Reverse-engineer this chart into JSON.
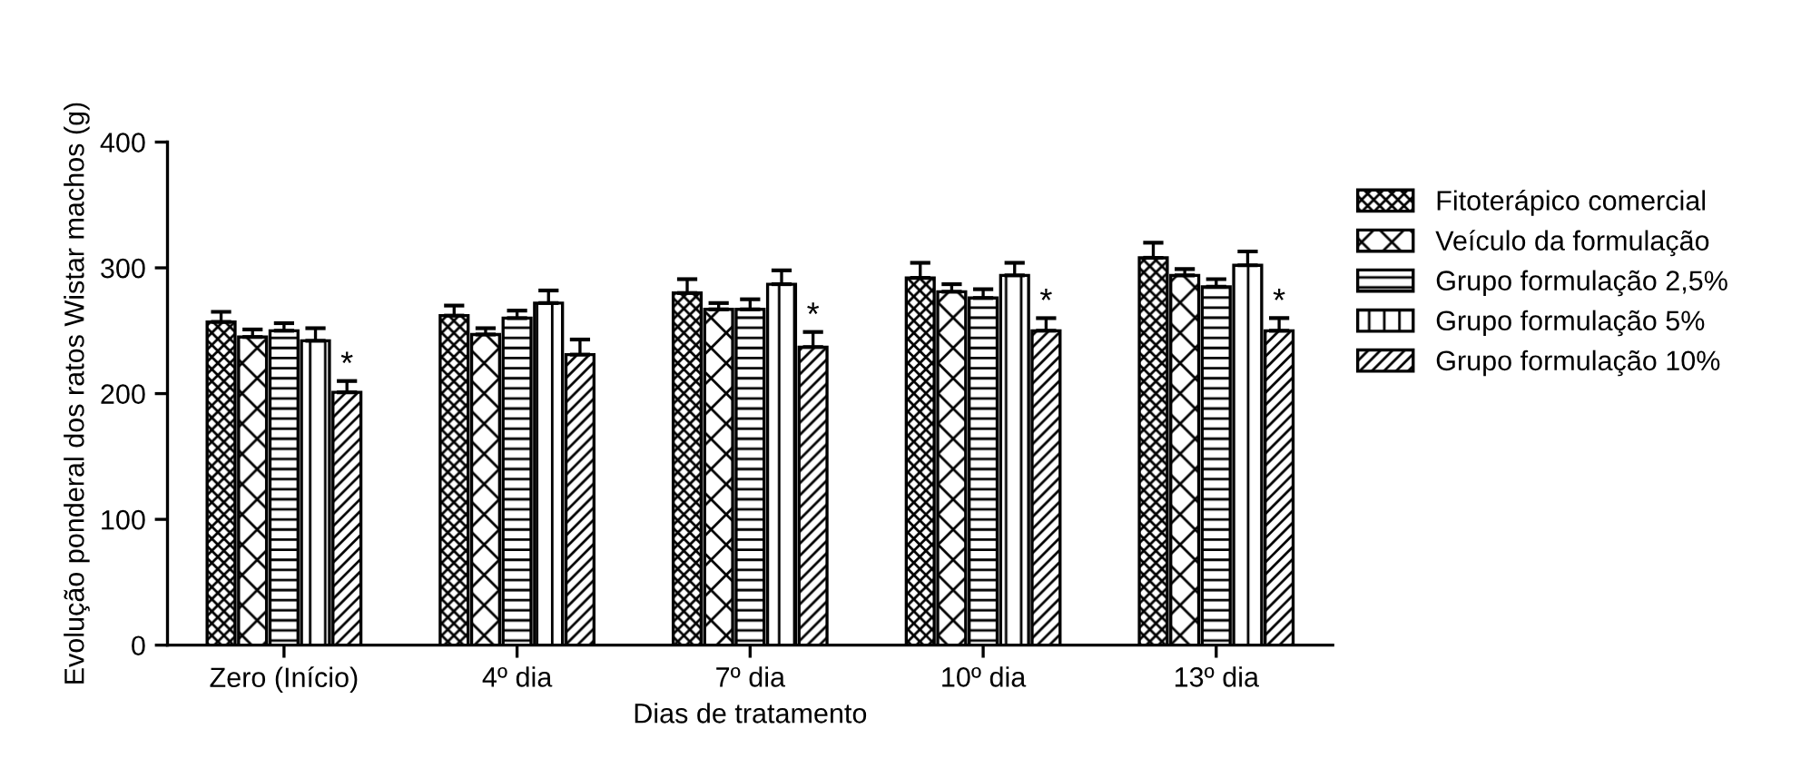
{
  "chart_data": {
    "type": "bar",
    "xlabel": "Dias de tratamento",
    "ylabel": "Evolução ponderal dos ratos Wistar machos (g)",
    "categories": [
      "Zero (Início)",
      "4º dia",
      "7º dia",
      "10º dia",
      "13º dia"
    ],
    "series": [
      {
        "name": "Fitoterápico comercial",
        "color": "#000000",
        "values": [
          257,
          262,
          280,
          292,
          308
        ],
        "errors": [
          [
            257,
            265
          ],
          [
            262,
            270
          ],
          [
            280,
            291
          ],
          [
            292,
            304
          ],
          [
            308,
            320
          ]
        ]
      },
      {
        "name": "Veículo da formulação",
        "color": "#000000",
        "values": [
          245,
          247,
          267,
          281,
          294
        ],
        "errors": [
          [
            245,
            251
          ],
          [
            247,
            252
          ],
          [
            267,
            272
          ],
          [
            281,
            287
          ],
          [
            294,
            299
          ]
        ]
      },
      {
        "name": "Grupo formulação 2,5%",
        "color": "#000000",
        "values": [
          250,
          260,
          267,
          276,
          285
        ],
        "errors": [
          [
            250,
            256
          ],
          [
            260,
            266
          ],
          [
            267,
            275
          ],
          [
            276,
            283
          ],
          [
            285,
            291
          ]
        ]
      },
      {
        "name": "Grupo formulação 5%",
        "color": "#000000",
        "values": [
          242,
          272,
          287,
          294,
          302
        ],
        "errors": [
          [
            242,
            252
          ],
          [
            272,
            282
          ],
          [
            287,
            298
          ],
          [
            294,
            304
          ],
          [
            302,
            313
          ]
        ]
      },
      {
        "name": "Grupo formulação 10%",
        "color": "#000000",
        "values": [
          201,
          231,
          237,
          250,
          250
        ],
        "value_labels": [
          "*",
          null,
          "*",
          "*",
          "*"
        ],
        "errors": [
          [
            201,
            210
          ],
          [
            231,
            243
          ],
          [
            237,
            249
          ],
          [
            250,
            260
          ],
          [
            250,
            260
          ]
        ]
      }
    ],
    "ylim": [
      0,
      400
    ],
    "yticks": [
      0,
      100,
      200,
      300,
      400
    ],
    "grid": false,
    "legend": "right"
  }
}
